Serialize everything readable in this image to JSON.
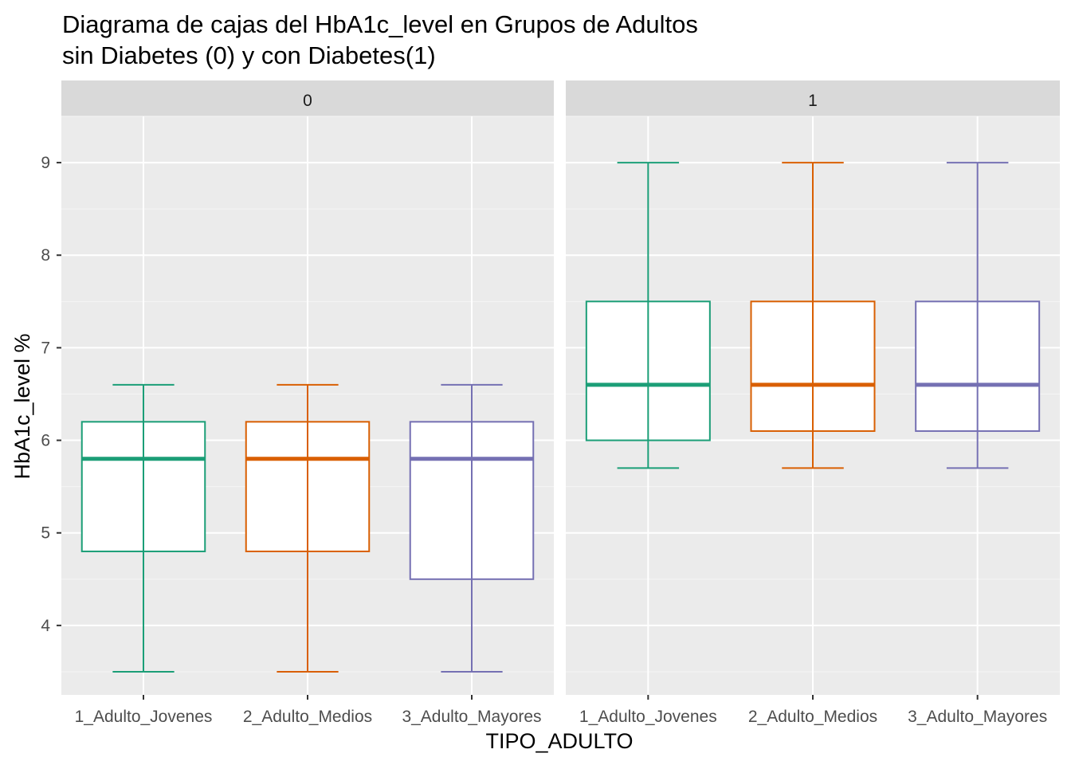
{
  "chart_data": {
    "type": "boxplot",
    "title": "Diagrama de cajas del HbA1c_level en Grupos de Adultos",
    "subtitle": "sin Diabetes (0) y con Diabetes(1)",
    "xlabel": "TIPO_ADULTO",
    "ylabel": "HbA1c_level %",
    "ylim": [
      3.25,
      9.5
    ],
    "yticks": [
      4,
      5,
      6,
      7,
      8,
      9
    ],
    "grid": true,
    "legend": "none",
    "categories": [
      "1_Adulto_Jovenes",
      "2_Adulto_Medios",
      "3_Adulto_Mayores"
    ],
    "colors": [
      "#1b9e77",
      "#d95f02",
      "#7570b3"
    ],
    "panels": [
      {
        "label": "0",
        "boxes": [
          {
            "category": "1_Adulto_Jovenes",
            "min": 3.5,
            "q1": 4.8,
            "median": 5.8,
            "q3": 6.2,
            "max": 6.6
          },
          {
            "category": "2_Adulto_Medios",
            "min": 3.5,
            "q1": 4.8,
            "median": 5.8,
            "q3": 6.2,
            "max": 6.6
          },
          {
            "category": "3_Adulto_Mayores",
            "min": 3.5,
            "q1": 4.5,
            "median": 5.8,
            "q3": 6.2,
            "max": 6.6
          }
        ]
      },
      {
        "label": "1",
        "boxes": [
          {
            "category": "1_Adulto_Jovenes",
            "min": 5.7,
            "q1": 6.0,
            "median": 6.6,
            "q3": 7.5,
            "max": 9.0
          },
          {
            "category": "2_Adulto_Medios",
            "min": 5.7,
            "q1": 6.1,
            "median": 6.6,
            "q3": 7.5,
            "max": 9.0
          },
          {
            "category": "3_Adulto_Mayores",
            "min": 5.7,
            "q1": 6.1,
            "median": 6.6,
            "q3": 7.5,
            "max": 9.0
          }
        ]
      }
    ]
  }
}
